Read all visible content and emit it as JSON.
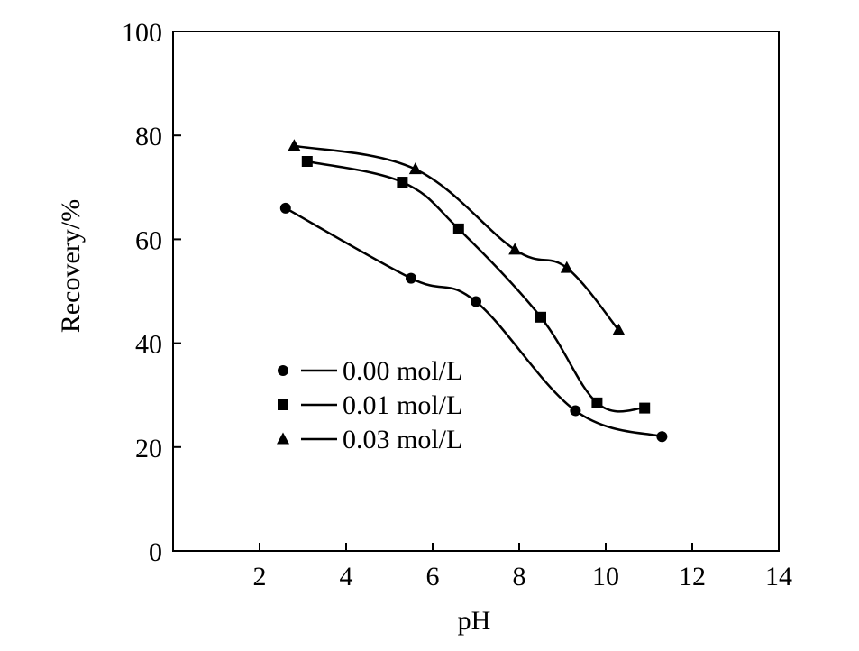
{
  "chart_data": {
    "type": "line",
    "title": "",
    "xlabel": "pH",
    "ylabel": "Recovery/%",
    "xlim": [
      0,
      14
    ],
    "ylim": [
      0,
      100
    ],
    "xticks": [
      2,
      4,
      6,
      8,
      10,
      12,
      14
    ],
    "yticks": [
      0,
      20,
      40,
      60,
      80,
      100
    ],
    "grid": false,
    "legend_position": "lower-left",
    "series": [
      {
        "name": "0.00 mol/L",
        "marker": "circle",
        "x": [
          2.6,
          5.5,
          7.0,
          9.3,
          11.3
        ],
        "y": [
          66,
          52.5,
          48,
          27,
          22
        ]
      },
      {
        "name": "0.01 mol/L",
        "marker": "square",
        "x": [
          3.1,
          5.3,
          6.6,
          8.5,
          9.8,
          10.9
        ],
        "y": [
          75,
          71,
          62,
          45,
          28.5,
          27.5
        ]
      },
      {
        "name": "0.03 mol/L",
        "marker": "triangle",
        "x": [
          2.8,
          5.6,
          7.9,
          9.1,
          10.3
        ],
        "y": [
          78,
          73.5,
          58,
          54.5,
          42.5
        ]
      }
    ]
  }
}
